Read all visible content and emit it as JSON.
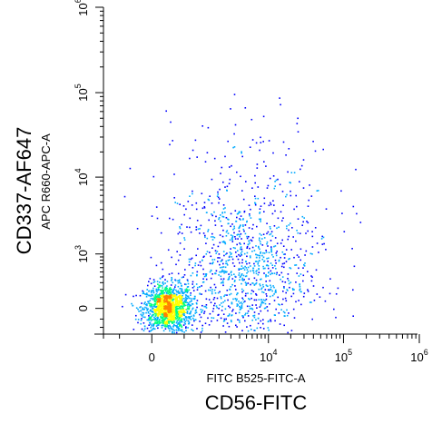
{
  "chart_data": {
    "type": "scatter",
    "style": "flow-cytometry pseudocolor density dot plot",
    "x_axis": {
      "inner_label": "FITC B525-FITC-A",
      "outer_label": "CD56-FITC",
      "scale": "biexponential",
      "range": [
        -1000,
        1000000
      ],
      "tick_labels": [
        {
          "base": "0",
          "exp": ""
        },
        {
          "base": "10",
          "exp": "4"
        },
        {
          "base": "10",
          "exp": "5"
        },
        {
          "base": "10",
          "exp": "6"
        }
      ]
    },
    "y_axis": {
      "inner_label": "APC R660-APC-A",
      "outer_label": "CD337-AF647",
      "scale": "biexponential",
      "range": [
        -300,
        1000000
      ],
      "tick_labels": [
        {
          "base": "0",
          "exp": ""
        },
        {
          "base": "10",
          "exp": "3"
        },
        {
          "base": "10",
          "exp": "4"
        },
        {
          "base": "10",
          "exp": "5"
        },
        {
          "base": "10",
          "exp": "6"
        }
      ]
    },
    "populations": [
      {
        "name": "",
        "center": [
          180,
          5
        ],
        "density": "high",
        "count": 1400
      },
      {
        "name": "",
        "center": [
          4000,
          400
        ],
        "density": "medium",
        "count": 900
      },
      {
        "name": "",
        "center": [
          6000,
          4000
        ],
        "density": "low",
        "count": 300
      }
    ],
    "density_colors": [
      "#0000ff",
      "#00aaff",
      "#00ff80",
      "#ffff00",
      "#ff8000"
    ],
    "grid": false,
    "legend": "none"
  }
}
